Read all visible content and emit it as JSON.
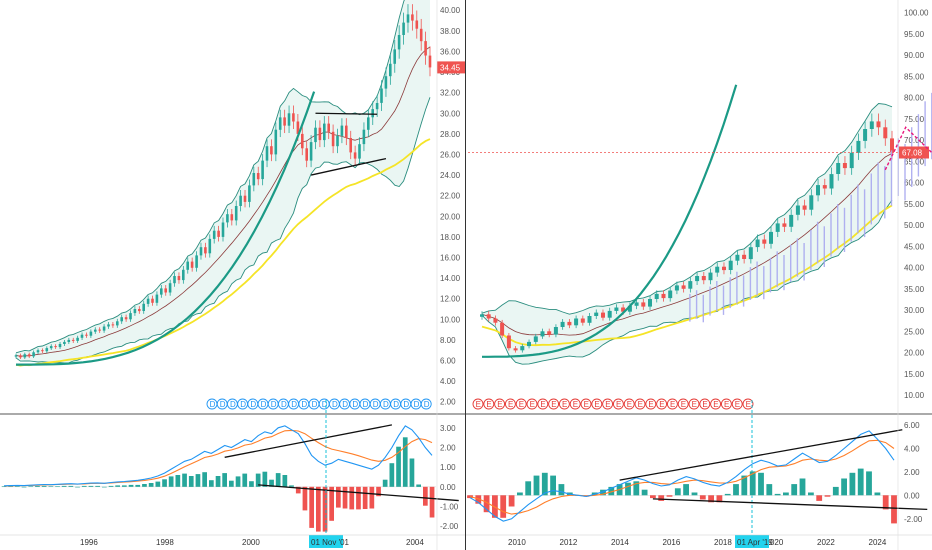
{
  "chart_data": [
    {
      "type": "candlestick",
      "panel": "left-price",
      "y_axis": {
        "ticks": [
          "2.00",
          "4.00",
          "6.00",
          "8.00",
          "10.00",
          "12.00",
          "14.00",
          "16.00",
          "18.00",
          "20.00",
          "22.00",
          "24.00",
          "26.00",
          "28.00",
          "30.00",
          "32.00",
          "34.00",
          "36.00",
          "38.00",
          "40.00"
        ],
        "ylim": [
          1.0,
          40.8
        ]
      },
      "last_price": "34.45",
      "colors": {
        "up": "#26a69a",
        "down": "#ef5350",
        "bollinger": "#2a8d7f",
        "ma_slow": "#f5e427",
        "ma_fast": "#8b3a3a",
        "arc": "#1b9a86",
        "trendline": "#111111",
        "last_price_badge": "#ef5350"
      },
      "close_series": [
        6.5,
        6.3,
        6.6,
        6.4,
        6.8,
        7.0,
        6.9,
        7.2,
        7.4,
        7.3,
        7.6,
        7.8,
        8.0,
        7.9,
        8.2,
        8.5,
        8.4,
        8.8,
        9.0,
        8.9,
        9.3,
        9.5,
        9.4,
        9.8,
        10.2,
        10.0,
        10.6,
        11.0,
        10.8,
        11.5,
        12.0,
        11.6,
        12.4,
        13.0,
        12.6,
        13.5,
        14.2,
        13.8,
        14.8,
        15.6,
        15.0,
        16.2,
        17.0,
        16.4,
        17.8,
        18.6,
        18.0,
        19.4,
        20.2,
        19.6,
        21.0,
        22.0,
        21.4,
        23.0,
        24.2,
        23.6,
        25.4,
        26.8,
        26.0,
        28.4,
        29.6,
        28.8,
        30.0,
        29.2,
        28.0,
        26.6,
        25.4,
        27.2,
        28.6,
        27.4,
        29.0,
        28.2,
        26.8,
        27.8,
        28.8,
        27.6,
        26.2,
        25.6,
        27.0,
        28.4,
        29.6,
        30.4,
        31.0,
        32.4,
        33.6,
        34.8,
        36.2,
        37.6,
        38.8,
        39.6,
        39.0,
        38.2,
        37.0,
        35.6,
        34.45
      ],
      "trendlines": [
        {
          "name": "triangle-upper",
          "points": [
            [
              68,
              30.0
            ],
            [
              82,
              29.9
            ]
          ]
        },
        {
          "name": "triangle-lower",
          "points": [
            [
              67,
              24.0
            ],
            [
              84,
              25.6
            ]
          ]
        }
      ],
      "events": {
        "label": "D",
        "count": 22
      }
    },
    {
      "type": "candlestick",
      "panel": "right-price",
      "y_axis": {
        "ticks": [
          "10.00",
          "15.00",
          "20.00",
          "25.00",
          "30.00",
          "35.00",
          "40.00",
          "45.00",
          "50.00",
          "55.00",
          "60.00",
          "65.00",
          "70.00",
          "75.00",
          "80.00",
          "85.00",
          "90.00",
          "95.00",
          "100.00"
        ],
        "ylim": [
          6.0,
          102.5
        ]
      },
      "last_price": "67.08",
      "colors": {
        "up": "#26a69a",
        "down": "#ef5350",
        "projection": "#a9a8f0",
        "forecast_path": "#e8177c",
        "price_line": "#ef5350"
      },
      "close_series": [
        29,
        28,
        27,
        24,
        21,
        20.5,
        21.5,
        22.5,
        23.8,
        25.0,
        24.2,
        26.0,
        27.2,
        26.4,
        28.0,
        27.0,
        28.6,
        29.4,
        28.2,
        29.8,
        30.6,
        29.6,
        31.0,
        31.8,
        30.8,
        32.6,
        33.8,
        32.8,
        34.6,
        35.8,
        35.0,
        36.8,
        38.0,
        37.0,
        38.8,
        40.2,
        39.4,
        41.6,
        43.0,
        42.0,
        44.8,
        46.6,
        45.6,
        48.4,
        50.4,
        49.6,
        52.4,
        54.6,
        53.6,
        57.0,
        59.4,
        58.6,
        62.0,
        64.6,
        63.4,
        67.0,
        69.8,
        72.6,
        74.4,
        73.0,
        70.4,
        67.08
      ],
      "forecast_path": [
        [
          60,
          63.0
        ],
        [
          62,
          73.0
        ],
        [
          65,
          66.0
        ],
        [
          68,
          62.0
        ],
        [
          72,
          72.0
        ],
        [
          80,
          86.0
        ],
        [
          84,
          90.0
        ]
      ],
      "x_axis": {
        "ticks": [
          "2010",
          "2012",
          "2014",
          "2016",
          "2018",
          "2020",
          "2022",
          "2024"
        ]
      },
      "cursor_label": "01 Apr '19",
      "events": {
        "label": "E",
        "count": 26
      }
    },
    {
      "type": "macd",
      "panel": "left-indicator",
      "y_axis": {
        "ticks": [
          "3.00",
          "2.00",
          "1.00",
          "0.00",
          "-1.00",
          "-2.00"
        ],
        "ylim": [
          -2.4,
          3.5
        ]
      },
      "x_axis": {
        "ticks": [
          "1996",
          "1998",
          "2000",
          "2004"
        ]
      },
      "cursor_label": "01 Nov '01",
      "colors": {
        "macd": "#2196f3",
        "signal": "#ff7f2a",
        "hist_up": "#26a69a",
        "hist_down": "#ef5350"
      },
      "trendlines": [
        {
          "name": "macd-upper",
          "points": [
            [
              33,
              1.5
            ],
            [
              58,
              3.15
            ]
          ]
        },
        {
          "name": "macd-lower",
          "points": [
            [
              38,
              0.1
            ],
            [
              68,
              -0.7
            ]
          ]
        }
      ],
      "macd_series": [
        0.05,
        0.06,
        0.07,
        0.06,
        0.08,
        0.1,
        0.12,
        0.11,
        0.13,
        0.15,
        0.16,
        0.14,
        0.17,
        0.19,
        0.2,
        0.18,
        0.22,
        0.25,
        0.27,
        0.3,
        0.33,
        0.38,
        0.45,
        0.55,
        0.7,
        0.9,
        1.1,
        1.3,
        1.4,
        1.6,
        1.8,
        1.7,
        1.9,
        2.1,
        2.0,
        2.2,
        2.4,
        2.3,
        2.6,
        2.8,
        2.7,
        3.0,
        3.1,
        2.9,
        2.7,
        2.2,
        1.6,
        1.3,
        1.1,
        1.2,
        1.4,
        1.3,
        1.2,
        1.1,
        1.0,
        0.9,
        1.1,
        1.5,
        2.0,
        2.6,
        3.1,
        2.9,
        2.5,
        2.0,
        1.6
      ],
      "signal_series": [
        0.04,
        0.05,
        0.06,
        0.06,
        0.07,
        0.08,
        0.1,
        0.1,
        0.12,
        0.13,
        0.14,
        0.14,
        0.15,
        0.17,
        0.18,
        0.18,
        0.2,
        0.22,
        0.24,
        0.26,
        0.29,
        0.32,
        0.37,
        0.44,
        0.54,
        0.68,
        0.85,
        1.02,
        1.17,
        1.33,
        1.49,
        1.56,
        1.67,
        1.81,
        1.87,
        1.98,
        2.12,
        2.18,
        2.32,
        2.48,
        2.55,
        2.71,
        2.85,
        2.87,
        2.84,
        2.7,
        2.47,
        2.25,
        2.05,
        1.92,
        1.84,
        1.76,
        1.68,
        1.58,
        1.47,
        1.36,
        1.3,
        1.35,
        1.5,
        1.75,
        2.05,
        2.3,
        2.45,
        2.4,
        2.25
      ]
    },
    {
      "type": "macd",
      "panel": "right-indicator",
      "y_axis": {
        "ticks": [
          "6.00",
          "4.00",
          "2.00",
          "0.00",
          "-2.00"
        ],
        "ylim": [
          -3.3,
          6.6
        ]
      },
      "trendlines": [
        {
          "name": "macd-upper",
          "points": [
            [
              18,
              1.3
            ],
            [
              52,
              5.6
            ]
          ]
        },
        {
          "name": "macd-lower",
          "points": [
            [
              22,
              -0.3
            ],
            [
              55,
              -1.2
            ]
          ]
        }
      ],
      "macd_series": [
        -0.2,
        -0.6,
        -1.2,
        -1.8,
        -2.2,
        -2.0,
        -1.4,
        -0.8,
        -0.3,
        0.2,
        0.4,
        0.3,
        0.1,
        0.0,
        -0.1,
        0.1,
        0.3,
        0.6,
        0.9,
        1.2,
        1.5,
        1.3,
        1.0,
        0.8,
        0.9,
        1.3,
        1.6,
        1.4,
        1.1,
        0.9,
        0.8,
        1.1,
        1.6,
        2.2,
        2.7,
        3.0,
        2.8,
        2.5,
        2.6,
        3.1,
        3.6,
        3.2,
        2.8,
        2.9,
        3.4,
        4.0,
        4.6,
        5.2,
        5.5,
        4.8,
        4.0,
        3.0
      ],
      "signal_series": [
        -0.1,
        -0.3,
        -0.6,
        -1.0,
        -1.4,
        -1.6,
        -1.5,
        -1.3,
        -1.0,
        -0.6,
        -0.3,
        -0.1,
        0.0,
        0.0,
        -0.05,
        0.0,
        0.1,
        0.3,
        0.5,
        0.75,
        1.0,
        1.1,
        1.1,
        1.0,
        0.95,
        1.05,
        1.2,
        1.3,
        1.25,
        1.15,
        1.05,
        1.05,
        1.2,
        1.5,
        1.85,
        2.2,
        2.4,
        2.45,
        2.5,
        2.7,
        3.0,
        3.1,
        3.0,
        2.95,
        3.1,
        3.4,
        3.8,
        4.25,
        4.65,
        4.7,
        4.5,
        4.0
      ]
    }
  ]
}
